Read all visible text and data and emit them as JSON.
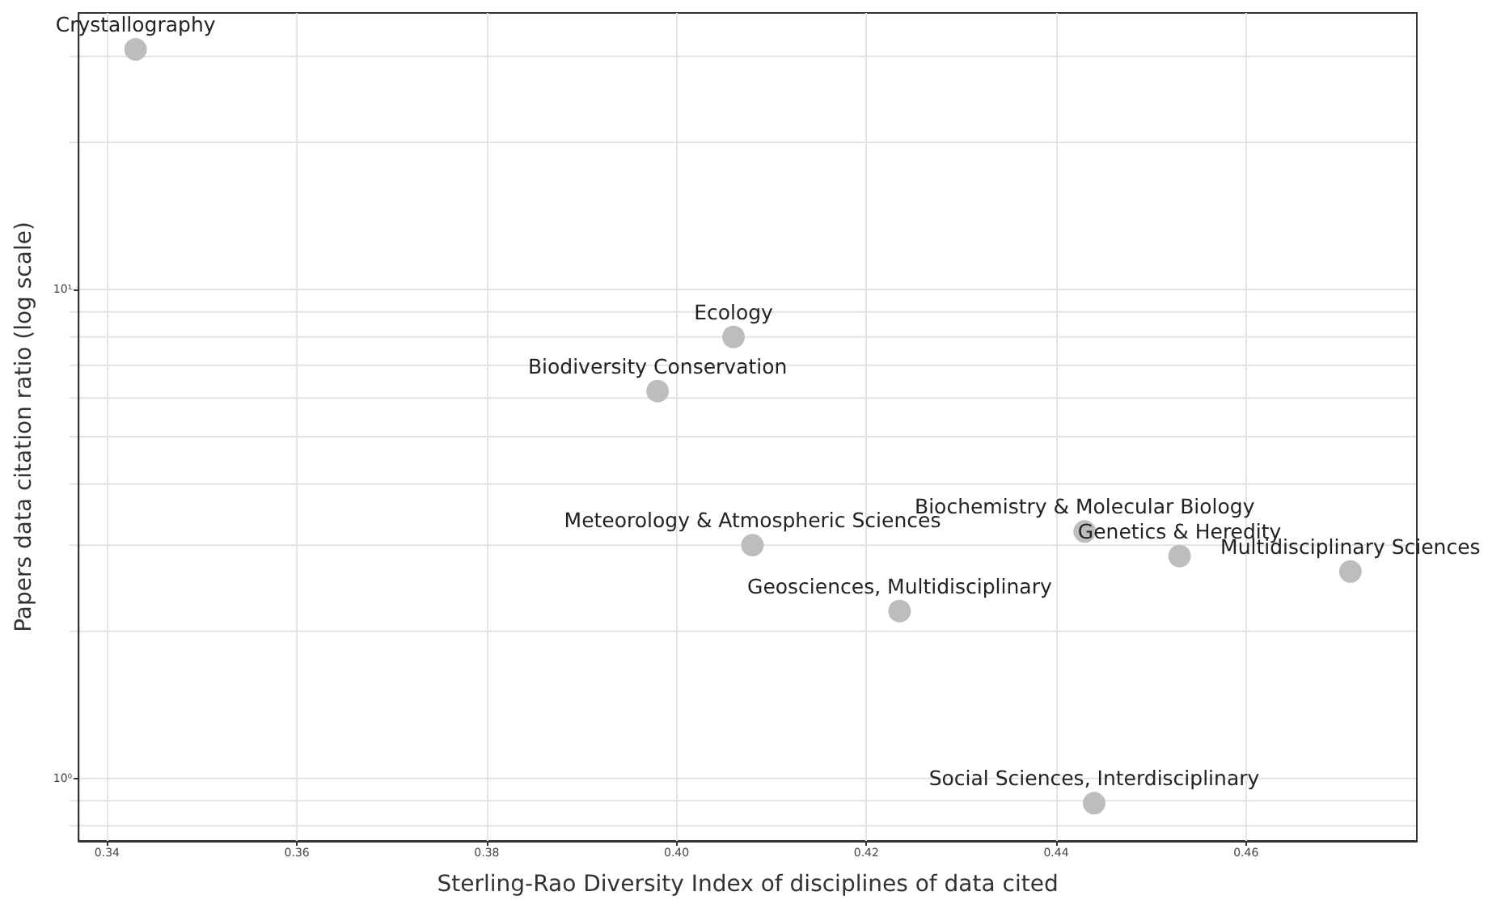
{
  "chart_data": {
    "type": "scatter",
    "xlabel": "Sterling-Rao Diversity Index of disciplines of data cited",
    "ylabel": "Papers data citation ratio (log scale)",
    "x": [
      0.343,
      0.406,
      0.398,
      0.408,
      0.4235,
      0.443,
      0.453,
      0.471,
      0.444
    ],
    "series": [
      {
        "color": "#bdbdbd",
        "values": [
          31,
          8.0,
          6.2,
          3.0,
          2.2,
          3.2,
          2.85,
          2.65,
          0.89
        ]
      }
    ],
    "annotations": [
      {
        "text": "Crystallography",
        "x": 0.343,
        "y": 31
      },
      {
        "text": "Ecology",
        "x": 0.406,
        "y": 8.0
      },
      {
        "text": "Biodiversity Conservation",
        "x": 0.398,
        "y": 6.2
      },
      {
        "text": "Meteorology & Atmospheric Sciences",
        "x": 0.408,
        "y": 3.0
      },
      {
        "text": "Geosciences, Multidisciplinary",
        "x": 0.4235,
        "y": 2.2
      },
      {
        "text": "Biochemistry & Molecular Biology",
        "x": 0.443,
        "y": 3.2
      },
      {
        "text": "Genetics & Heredity",
        "x": 0.453,
        "y": 2.85
      },
      {
        "text": "Multidisciplinary Sciences",
        "x": 0.471,
        "y": 2.65
      },
      {
        "text": "Social Sciences, Interdisciplinary",
        "x": 0.444,
        "y": 0.89
      }
    ],
    "xlim": [
      0.337,
      0.478
    ],
    "xticks": [
      {
        "value": 0.34,
        "label": "0.34"
      },
      {
        "value": 0.36,
        "label": "0.36"
      },
      {
        "value": 0.38,
        "label": "0.38"
      },
      {
        "value": 0.4,
        "label": "0.40"
      },
      {
        "value": 0.42,
        "label": "0.42"
      },
      {
        "value": 0.44,
        "label": "0.44"
      },
      {
        "value": 0.46,
        "label": "0.46"
      }
    ],
    "ylim": [
      0.745,
      36.8
    ],
    "yticks": [
      {
        "value": 0.8,
        "label": null
      },
      {
        "value": 0.9,
        "label": null
      },
      {
        "value": 1,
        "label": "10⁰"
      },
      {
        "value": 2,
        "label": null
      },
      {
        "value": 3,
        "label": null
      },
      {
        "value": 4,
        "label": null
      },
      {
        "value": 5,
        "label": null
      },
      {
        "value": 6,
        "label": null
      },
      {
        "value": 7,
        "label": null
      },
      {
        "value": 8,
        "label": null
      },
      {
        "value": 9,
        "label": null
      },
      {
        "value": 10,
        "label": "10¹"
      },
      {
        "value": 20,
        "label": null
      },
      {
        "value": 30,
        "label": null
      }
    ],
    "log": "y",
    "grid": true,
    "marker": "circle"
  }
}
